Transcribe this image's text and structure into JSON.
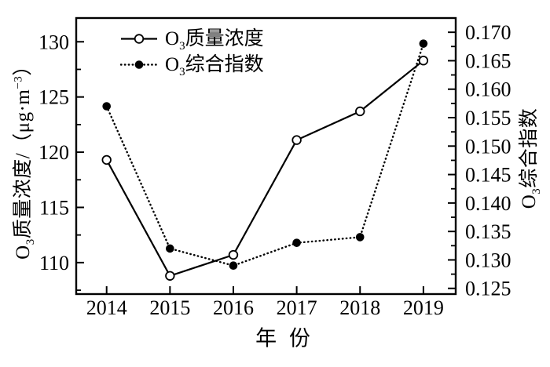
{
  "chart_data": {
    "type": "line",
    "title": "",
    "xlabel": "年 份",
    "x": [
      2014,
      2015,
      2016,
      2017,
      2018,
      2019
    ],
    "x_tick_labels": [
      "2014",
      "2015",
      "2016",
      "2017",
      "2018",
      "2019"
    ],
    "xlim": [
      2013.52,
      2019.51
    ],
    "grid": false,
    "legend_position": "upper-left-inside",
    "series": [
      {
        "name": "O3质量浓度",
        "axis": "left",
        "line_style": "solid",
        "marker": "open-circle",
        "values": [
          119.3,
          108.8,
          110.7,
          121.1,
          123.7,
          128.3
        ]
      },
      {
        "name": "O3综合指数",
        "axis": "right",
        "line_style": "dotted",
        "marker": "filled-circle",
        "values": [
          0.157,
          0.132,
          0.129,
          0.133,
          0.134,
          0.168
        ]
      }
    ],
    "left_axis": {
      "label": "O3质量浓度/（μg·m−3）",
      "lim": [
        107.15,
        132.15
      ],
      "ticks": [
        110,
        115,
        120,
        125,
        130
      ],
      "tick_labels": [
        "110",
        "115",
        "120",
        "125",
        "130"
      ],
      "minor_ticks": [
        107.5,
        112.5,
        117.5,
        122.5,
        127.5
      ]
    },
    "right_axis": {
      "label": "O3综合指数",
      "lim": [
        0.124,
        0.1725
      ],
      "ticks": [
        0.125,
        0.13,
        0.135,
        0.14,
        0.145,
        0.15,
        0.155,
        0.16,
        0.165,
        0.17
      ],
      "tick_labels": [
        "0.125",
        "0.130",
        "0.135",
        "0.140",
        "0.145",
        "0.150",
        "0.155",
        "0.160",
        "0.165",
        "0.170"
      ],
      "minor_ticks": [
        0.1275,
        0.1325,
        0.1375,
        0.1425,
        0.1475,
        0.1525,
        0.1575,
        0.1625,
        0.1675
      ]
    },
    "colors": {
      "foreground": "#000000",
      "background": "#ffffff"
    }
  },
  "labels": {
    "xlabel": "年 份",
    "ylabel_left": {
      "pre": "O",
      "sub": "3",
      "main": "质量浓度/（μg·m",
      "sup": "−3",
      "suffix": "）"
    },
    "ylabel_right": {
      "pre": "O",
      "sub": "3",
      "main": "综合指数"
    },
    "legend1": {
      "pre": "O",
      "sub": "3",
      "main": "质量浓度"
    },
    "legend2": {
      "pre": "O",
      "sub": "3",
      "main": "综合指数"
    }
  }
}
